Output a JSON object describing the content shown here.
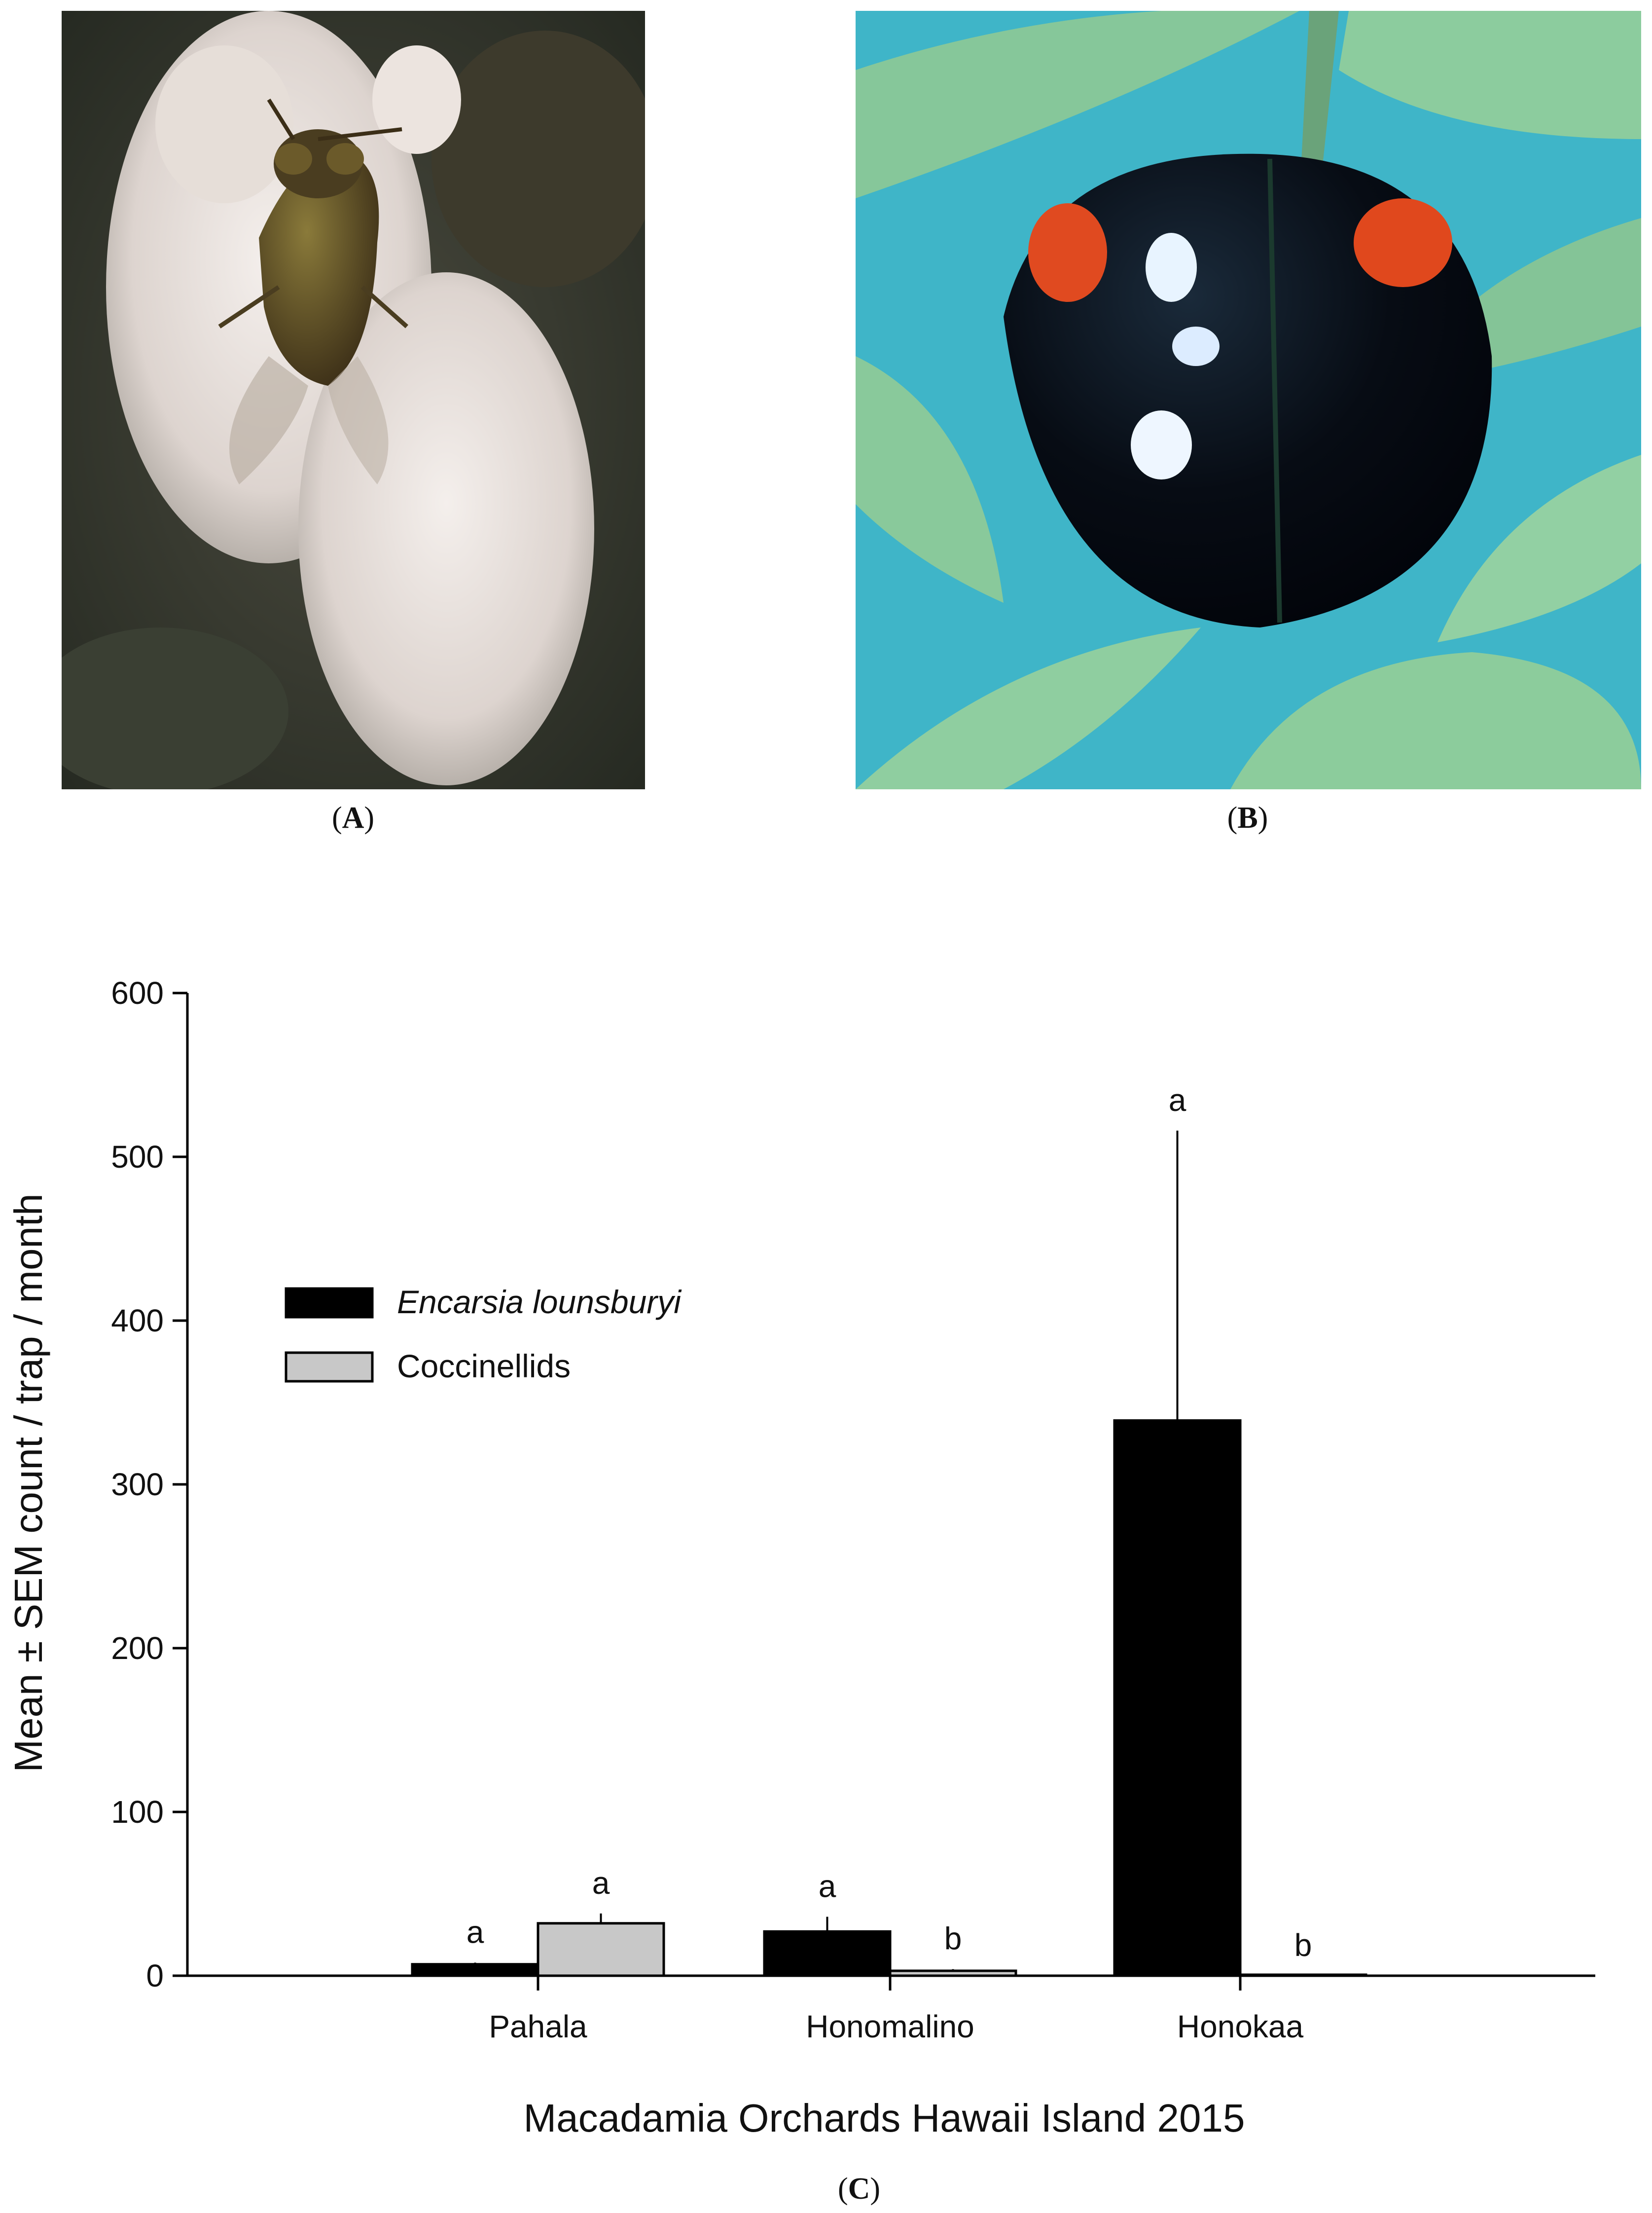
{
  "panels": {
    "a_label": "A",
    "b_label": "B",
    "c_label": "C"
  },
  "photos": {
    "a_subject": "whitefly-parasitoid-wasp-photo",
    "b_subject": "black-ladybeetle-photo"
  },
  "colors": {
    "encarsia": "#000000",
    "coccinellids": "#c8c8c8"
  },
  "chart_data": {
    "type": "bar",
    "title": "",
    "xlabel": "Macadamia Orchards Hawaii Island 2015",
    "ylabel": "Mean ± SEM count / trap / month",
    "ylim": [
      0,
      600
    ],
    "yticks": [
      0,
      100,
      200,
      300,
      400,
      500,
      600
    ],
    "categories": [
      "Pahala",
      "Honomalino",
      "Honokaa"
    ],
    "series": [
      {
        "name": "Encarsia lounsburyi",
        "values": [
          7,
          27,
          339
        ],
        "sem": [
          1,
          9,
          177
        ],
        "letters": [
          "a",
          "a",
          "a"
        ]
      },
      {
        "name": "Coccinellids",
        "values": [
          32,
          3,
          0
        ],
        "sem": [
          6,
          1,
          0
        ],
        "letters": [
          "a",
          "b",
          "b"
        ]
      }
    ],
    "legend_position": "upper-left",
    "grid": false
  }
}
